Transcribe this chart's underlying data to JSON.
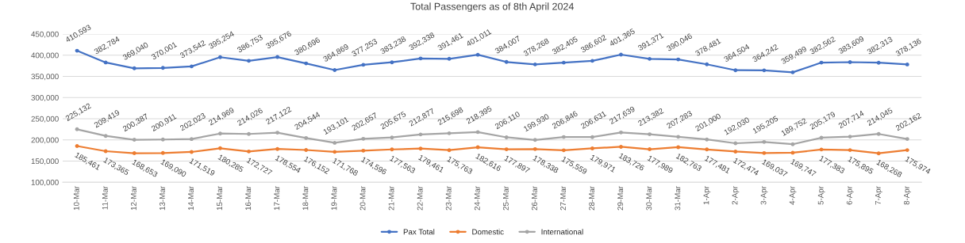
{
  "chart_data": {
    "type": "line",
    "title": "Total Passengers as of 8th April 2024",
    "categories": [
      "10-Mar",
      "11-Mar",
      "12-Mar",
      "13-Mar",
      "14-Mar",
      "15-Mar",
      "16-Mar",
      "17-Mar",
      "18-Mar",
      "19-Mar",
      "20-Mar",
      "21-Mar",
      "22-Mar",
      "23-Mar",
      "24-Mar",
      "25-Mar",
      "26-Mar",
      "27-Mar",
      "28-Mar",
      "29-Mar",
      "30-Mar",
      "31-Mar",
      "1-Apr",
      "2-Apr",
      "3-Apr",
      "4-Apr",
      "5-Apr",
      "6-Apr",
      "7-Apr",
      "8-Apr"
    ],
    "series": [
      {
        "name": "Pax Total",
        "color": "#4472c4",
        "values": [
          410593,
          382784,
          369040,
          370001,
          373542,
          395254,
          386753,
          395676,
          380696,
          364869,
          377253,
          383238,
          392338,
          391461,
          401011,
          384007,
          378268,
          382405,
          386602,
          401365,
          391371,
          390046,
          378481,
          364504,
          364242,
          359499,
          382562,
          383609,
          382313,
          378136
        ],
        "value_labels": [
          "410,593",
          "382,784",
          "369,040",
          "370,001",
          "373,542",
          "395,254",
          "386,753",
          "395,676",
          "380,696",
          "364,869",
          "377,253",
          "383,238",
          "392,338",
          "391,461",
          "401,011",
          "384,007",
          "378,268",
          "382,405",
          "386,602",
          "401,365",
          "391,371",
          "390,046",
          "378,481",
          "364,504",
          "364,242",
          "359,499",
          "382,562",
          "383,609",
          "382,313",
          "378,136"
        ]
      },
      {
        "name": "Domestic",
        "color": "#ed7d31",
        "values": [
          185461,
          173365,
          168653,
          169090,
          171519,
          180285,
          172727,
          178554,
          176152,
          171768,
          174596,
          177563,
          179461,
          175763,
          182616,
          177897,
          178338,
          175559,
          179971,
          183726,
          177989,
          182763,
          177481,
          172474,
          169037,
          169747,
          177383,
          175895,
          168268,
          175974
        ],
        "value_labels": [
          "185,461",
          "173,365",
          "168,653",
          "169,090",
          "171,519",
          "180,285",
          "172,727",
          "178,554",
          "176,152",
          "171,768",
          "174,596",
          "177,563",
          "179,461",
          "175,763",
          "182,616",
          "177,897",
          "178,338",
          "175,559",
          "179,971",
          "183,726",
          "177,989",
          "182,763",
          "177,481",
          "172,474",
          "169,037",
          "169,747",
          "177,383",
          "175,895",
          "168,268",
          "175,974"
        ]
      },
      {
        "name": "International",
        "color": "#a5a5a5",
        "values": [
          225132,
          209419,
          200387,
          200911,
          202023,
          214969,
          214026,
          217122,
          204544,
          193101,
          202657,
          205675,
          212877,
          215698,
          218395,
          206110,
          199930,
          206846,
          206631,
          217639,
          213382,
          207283,
          201000,
          192030,
          195205,
          189752,
          205179,
          207714,
          214045,
          202162
        ],
        "value_labels": [
          "225,132",
          "209,419",
          "200,387",
          "200,911",
          "202,023",
          "214,969",
          "214,026",
          "217,122",
          "204,544",
          "193,101",
          "202,657",
          "205,675",
          "212,877",
          "215,698",
          "218,395",
          "206,110",
          "199,930",
          "206,846",
          "206,631",
          "217,639",
          "213,382",
          "207,283",
          "201,000",
          "192,030",
          "195,205",
          "189,752",
          "205,179",
          "207,714",
          "214,045",
          "202,162"
        ]
      }
    ],
    "ylim": [
      100000,
      450000
    ],
    "yticks": [
      {
        "value": 100000,
        "label": "100,000"
      },
      {
        "value": 150000,
        "label": "150,000"
      },
      {
        "value": 200000,
        "label": "200,000"
      },
      {
        "value": 250000,
        "label": "250,000"
      },
      {
        "value": 300000,
        "label": "300,000"
      },
      {
        "value": 350000,
        "label": "350,000"
      },
      {
        "value": 400000,
        "label": "400,000"
      },
      {
        "value": 450000,
        "label": "450,000"
      }
    ],
    "grid": "y",
    "legend": "bottom",
    "marker": "circle",
    "line_style": "solid"
  }
}
